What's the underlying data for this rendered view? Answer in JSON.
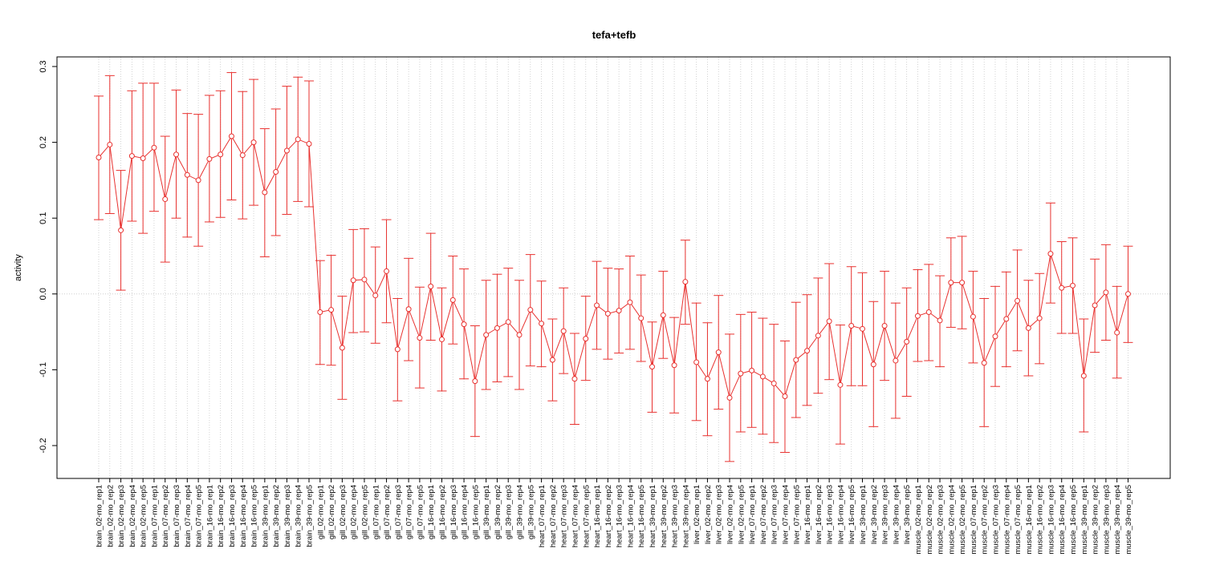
{
  "chart_data": {
    "type": "line",
    "title": "tefa+tefb",
    "xlabel": "",
    "ylabel": "activity",
    "ylim": [
      -0.24,
      0.31
    ],
    "yticks": [
      0.3,
      0.2,
      0.1,
      0.0,
      -0.1,
      -0.2
    ],
    "ytick_labels": [
      "0.3",
      "0.2",
      "0.1",
      "0.0",
      "-0.1",
      "-0.2"
    ],
    "grid": "vertical dotted at each sample; horizontal dotted at 0",
    "legend": "none",
    "colors": {
      "series": "#e8312f",
      "grid": "#c8c8c8",
      "frame": "#000000"
    },
    "categories": [
      "brain_02-mo_rep1",
      "brain_02-mo_rep2",
      "brain_02-mo_rep3",
      "brain_02-mo_rep4",
      "brain_02-mo_rep5",
      "brain_07-mo_rep1",
      "brain_07-mo_rep2",
      "brain_07-mo_rep3",
      "brain_07-mo_rep4",
      "brain_07-mo_rep5",
      "brain_16-mo_rep1",
      "brain_16-mo_rep2",
      "brain_16-mo_rep3",
      "brain_16-mo_rep4",
      "brain_16-mo_rep5",
      "brain_39-mo_rep1",
      "brain_39-mo_rep2",
      "brain_39-mo_rep3",
      "brain_39-mo_rep4",
      "brain_39-mo_rep5",
      "gill_02-mo_rep1",
      "gill_02-mo_rep2",
      "gill_02-mo_rep3",
      "gill_02-mo_rep4",
      "gill_02-mo_rep5",
      "gill_07-mo_rep1",
      "gill_07-mo_rep2",
      "gill_07-mo_rep3",
      "gill_07-mo_rep4",
      "gill_07-mo_rep5",
      "gill_16-mo_rep1",
      "gill_16-mo_rep2",
      "gill_16-mo_rep3",
      "gill_16-mo_rep4",
      "gill_16-mo_rep5",
      "gill_39-mo_rep1",
      "gill_39-mo_rep2",
      "gill_39-mo_rep3",
      "gill_39-mo_rep4",
      "gill_39-mo_rep5",
      "heart_07-mo_rep1",
      "heart_07-mo_rep2",
      "heart_07-mo_rep3",
      "heart_07-mo_rep4",
      "heart_07-mo_rep5",
      "heart_16-mo_rep1",
      "heart_16-mo_rep2",
      "heart_16-mo_rep3",
      "heart_16-mo_rep4",
      "heart_16-mo_rep5",
      "heart_39-mo_rep1",
      "heart_39-mo_rep2",
      "heart_39-mo_rep3",
      "heart_39-mo_rep4",
      "liver_02-mo_rep1",
      "liver_02-mo_rep2",
      "liver_02-mo_rep3",
      "liver_02-mo_rep4",
      "liver_02-mo_rep5",
      "liver_07-mo_rep1",
      "liver_07-mo_rep2",
      "liver_07-mo_rep3",
      "liver_07-mo_rep4",
      "liver_07-mo_rep5",
      "liver_16-mo_rep1",
      "liver_16-mo_rep2",
      "liver_16-mo_rep3",
      "liver_16-mo_rep4",
      "liver_16-mo_rep5",
      "liver_39-mo_rep1",
      "liver_39-mo_rep2",
      "liver_39-mo_rep3",
      "liver_39-mo_rep4",
      "liver_39-mo_rep5",
      "muscle_02-mo_rep1",
      "muscle_02-mo_rep2",
      "muscle_02-mo_rep3",
      "muscle_02-mo_rep4",
      "muscle_02-mo_rep5",
      "muscle_07-mo_rep1",
      "muscle_07-mo_rep2",
      "muscle_07-mo_rep3",
      "muscle_07-mo_rep4",
      "muscle_07-mo_rep5",
      "muscle_16-mo_rep1",
      "muscle_16-mo_rep2",
      "muscle_16-mo_rep3",
      "muscle_16-mo_rep4",
      "muscle_16-mo_rep5",
      "muscle_39-mo_rep1",
      "muscle_39-mo_rep2",
      "muscle_39-mo_rep3",
      "muscle_39-mo_rep4",
      "muscle_39-mo_rep5"
    ],
    "series": [
      {
        "values": [
          0.18,
          0.197,
          0.084,
          0.182,
          0.179,
          0.193,
          0.125,
          0.184,
          0.157,
          0.15,
          0.178,
          0.184,
          0.208,
          0.183,
          0.2,
          0.134,
          0.161,
          0.189,
          0.204,
          0.198,
          -0.024,
          -0.021,
          -0.071,
          0.018,
          0.019,
          -0.002,
          0.03,
          -0.073,
          -0.02,
          -0.058,
          0.01,
          -0.06,
          -0.008,
          -0.04,
          -0.115,
          -0.054,
          -0.045,
          -0.037,
          -0.054,
          -0.021,
          -0.039,
          -0.087,
          -0.049,
          -0.112,
          -0.059,
          -0.015,
          -0.026,
          -0.022,
          -0.011,
          -0.032,
          -0.096,
          -0.028,
          -0.094,
          0.016,
          -0.09,
          -0.112,
          -0.077,
          -0.137,
          -0.105,
          -0.101,
          -0.109,
          -0.118,
          -0.135,
          -0.087,
          -0.075,
          -0.055,
          -0.036,
          -0.12,
          -0.042,
          -0.046,
          -0.093,
          -0.042,
          -0.088,
          -0.063,
          -0.029,
          -0.024,
          -0.035,
          0.015,
          0.015,
          -0.03,
          -0.091,
          -0.056,
          -0.033,
          -0.009,
          -0.045,
          -0.032,
          0.053,
          0.008,
          0.011,
          -0.108,
          -0.015,
          0.002,
          -0.051,
          0.0
        ],
        "lower": [
          0.098,
          0.106,
          0.005,
          0.096,
          0.08,
          0.109,
          0.042,
          0.1,
          0.075,
          0.063,
          0.095,
          0.101,
          0.124,
          0.099,
          0.117,
          0.049,
          0.077,
          0.105,
          0.122,
          0.115,
          -0.093,
          -0.094,
          -0.139,
          -0.051,
          -0.05,
          -0.065,
          -0.038,
          -0.141,
          -0.088,
          -0.124,
          -0.061,
          -0.128,
          -0.066,
          -0.112,
          -0.188,
          -0.126,
          -0.116,
          -0.109,
          -0.126,
          -0.095,
          -0.096,
          -0.141,
          -0.105,
          -0.172,
          -0.114,
          -0.073,
          -0.086,
          -0.078,
          -0.073,
          -0.089,
          -0.156,
          -0.085,
          -0.157,
          -0.04,
          -0.167,
          -0.187,
          -0.152,
          -0.221,
          -0.182,
          -0.176,
          -0.185,
          -0.196,
          -0.209,
          -0.163,
          -0.147,
          -0.131,
          -0.113,
          -0.198,
          -0.121,
          -0.121,
          -0.175,
          -0.114,
          -0.164,
          -0.135,
          -0.089,
          -0.088,
          -0.096,
          -0.044,
          -0.046,
          -0.091,
          -0.175,
          -0.122,
          -0.096,
          -0.075,
          -0.108,
          -0.092,
          -0.012,
          -0.052,
          -0.052,
          -0.182,
          -0.077,
          -0.061,
          -0.111,
          -0.064
        ],
        "upper": [
          0.261,
          0.288,
          0.163,
          0.268,
          0.278,
          0.278,
          0.208,
          0.269,
          0.238,
          0.237,
          0.262,
          0.268,
          0.292,
          0.267,
          0.283,
          0.218,
          0.244,
          0.274,
          0.286,
          0.281,
          0.044,
          0.051,
          -0.003,
          0.085,
          0.086,
          0.062,
          0.098,
          -0.006,
          0.047,
          0.009,
          0.08,
          0.008,
          0.05,
          0.033,
          -0.042,
          0.018,
          0.026,
          0.034,
          0.018,
          0.052,
          0.017,
          -0.033,
          0.008,
          -0.052,
          -0.003,
          0.043,
          0.034,
          0.033,
          0.05,
          0.025,
          -0.037,
          0.03,
          -0.031,
          0.071,
          -0.012,
          -0.038,
          -0.002,
          -0.053,
          -0.027,
          -0.024,
          -0.032,
          -0.04,
          -0.062,
          -0.011,
          -0.001,
          0.021,
          0.04,
          -0.041,
          0.036,
          0.028,
          -0.01,
          0.03,
          -0.012,
          0.008,
          0.032,
          0.039,
          0.024,
          0.074,
          0.076,
          0.03,
          -0.006,
          0.01,
          0.029,
          0.058,
          0.018,
          0.027,
          0.12,
          0.069,
          0.074,
          -0.033,
          0.046,
          0.065,
          0.01,
          0.063
        ]
      }
    ]
  }
}
